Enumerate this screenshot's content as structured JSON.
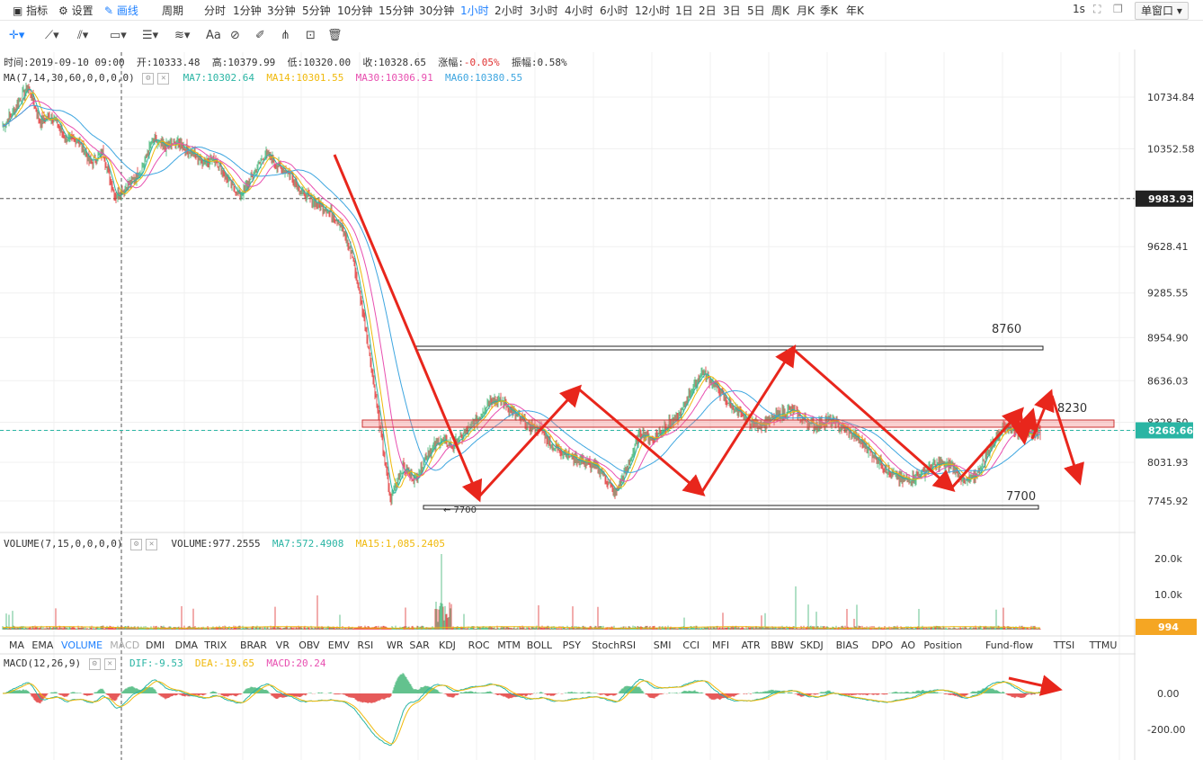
{
  "topbar": {
    "indicators_label": "指标",
    "settings_label": "设置",
    "draw_label": "画线",
    "period_label": "周期",
    "periods": [
      "分时",
      "1分钟",
      "3分钟",
      "5分钟",
      "10分钟",
      "15分钟",
      "30分钟",
      "1小时",
      "2小时",
      "3小时",
      "4小时",
      "6小时",
      "12小时",
      "1日",
      "2日",
      "3日",
      "5日",
      "周K",
      "月K",
      "季K",
      "年K"
    ],
    "active_period": "1小时",
    "refresh": "1s",
    "window_mode": "单窗口"
  },
  "toolbar": {
    "text_tool": "Aa"
  },
  "ohlc": {
    "time_label": "时间:",
    "time": "2019-09-10 09:00",
    "open_label": "开:",
    "open": "10333.48",
    "high_label": "高:",
    "high": "10379.99",
    "low_label": "低:",
    "low": "10320.00",
    "close_label": "收:",
    "close": "10328.65",
    "change_label": "涨幅:",
    "change": "-0.05%",
    "amp_label": "振幅:",
    "amp": "0.58%"
  },
  "ma": {
    "name": "MA(7,14,30,60,0,0,0,0)",
    "ma7_label": "MA7:10302.64",
    "ma14_label": "MA14:10301.55",
    "ma30_label": "MA30:10306.91",
    "ma60_label": "MA60:10380.55",
    "colors": {
      "ma7": "#2ab5a4",
      "ma14": "#f0b90b",
      "ma30": "#e84fb0",
      "ma60": "#3ea6e0"
    }
  },
  "volume": {
    "name": "VOLUME(7,15,0,0,0,0)",
    "vol_label": "VOLUME:977.2555",
    "ma7_label": "MA7:572.4908",
    "ma15_label": "MA15:1,085.2405",
    "ticks": [
      "20.0k",
      "10.0k"
    ],
    "current_badge": "994"
  },
  "macd": {
    "name": "MACD(12,26,9)",
    "dif_label": "DIF:-9.53",
    "dea_label": "DEA:-19.65",
    "macd_label": "MACD:20.24",
    "ticks": [
      "0.00",
      "-200.00"
    ]
  },
  "indicator_tabs": [
    "MA",
    "EMA",
    "VOLUME",
    "MACD",
    "DMI",
    "DMA",
    "TRIX",
    "BRAR",
    "VR",
    "OBV",
    "EMV",
    "RSI",
    "WR",
    "SAR",
    "KDJ",
    "ROC",
    "MTM",
    "BOLL",
    "PSY",
    "StochRSI",
    "SMI",
    "CCI",
    "MFI",
    "ATR",
    "BBW",
    "SKDJ",
    "BIAS",
    "DPO",
    "AO",
    "Position",
    "Fund-flow",
    "TTSI",
    "TTMU"
  ],
  "active_indicator": "VOLUME",
  "dim_indicator": "MACD",
  "chart_data": {
    "type": "candlestick",
    "price_axis_ticks": [
      10734.84,
      10352.58,
      9983.93,
      9628.41,
      9285.55,
      8954.9,
      8636.03,
      8328.5,
      8268.66,
      8031.93,
      7745.92
    ],
    "current_price": "9983.93",
    "last_price": "8268.66",
    "annotations": {
      "resistance_label": "8760",
      "support_label": "7700",
      "mid_label": "8230",
      "low_marker": "← 7700"
    },
    "price_path": [
      10520,
      10650,
      10820,
      10550,
      10600,
      10430,
      10420,
      10250,
      10330,
      10000,
      10080,
      10180,
      10420,
      10360,
      10400,
      10330,
      10260,
      10280,
      10120,
      10000,
      10150,
      10320,
      10230,
      10170,
      10020,
      9960,
      9900,
      9800,
      9550,
      9050,
      8400,
      7760,
      8000,
      7900,
      8100,
      8200,
      8150,
      8250,
      8350,
      8500,
      8480,
      8380,
      8300,
      8280,
      8150,
      8100,
      8050,
      8020,
      7950,
      7800,
      8000,
      8250,
      8200,
      8300,
      8350,
      8550,
      8700,
      8600,
      8480,
      8380,
      8320,
      8320,
      8380,
      8420,
      8350,
      8300,
      8350,
      8300,
      8230,
      8150,
      8050,
      7950,
      7900,
      7920,
      7980,
      8020,
      8000,
      7880,
      7950,
      8150,
      8300,
      8270,
      8230,
      8268
    ]
  }
}
